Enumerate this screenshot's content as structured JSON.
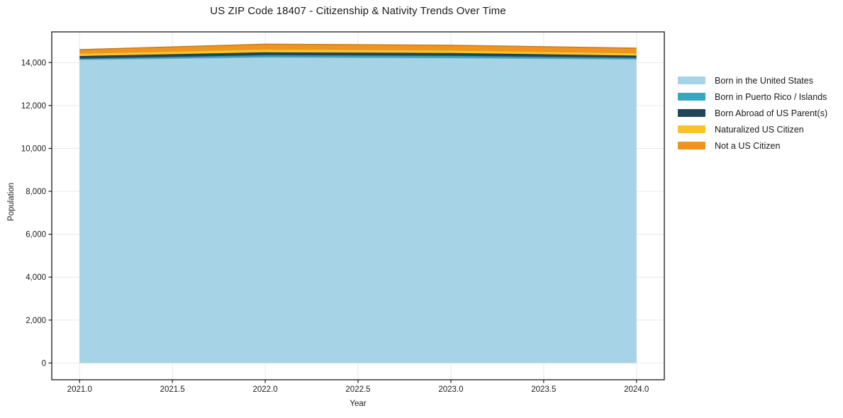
{
  "chart_data": {
    "type": "area",
    "stacked": true,
    "title": "US ZIP Code 18407 - Citizenship & Nativity Trends Over Time",
    "xlabel": "Year",
    "ylabel": "Population",
    "x": [
      2021,
      2022,
      2023,
      2024
    ],
    "series": [
      {
        "name": "Born in the United States",
        "color": "#A6D3E6",
        "values": [
          14140,
          14250,
          14220,
          14160
        ]
      },
      {
        "name": "Born in Puerto Rico / Islands",
        "color": "#3AA5BE",
        "values": [
          50,
          100,
          100,
          65
        ]
      },
      {
        "name": "Born Abroad of US Parent(s)",
        "color": "#21455B",
        "values": [
          115,
          130,
          130,
          100
        ]
      },
      {
        "name": "Naturalized US Citizen",
        "color": "#FCC22D",
        "values": [
          130,
          150,
          130,
          130
        ]
      },
      {
        "name": "Not a US Citizen",
        "color": "#F3931F",
        "values": [
          170,
          230,
          230,
          215
        ]
      }
    ],
    "xlim": [
      2020.85,
      2024.15
    ],
    "ylim": [
      -780,
      15430
    ],
    "xticks": {
      "values": [
        2021.0,
        2021.5,
        2022.0,
        2022.5,
        2023.0,
        2023.5,
        2024.0
      ],
      "labels": [
        "2021.0",
        "2021.5",
        "2022.0",
        "2022.5",
        "2023.0",
        "2023.5",
        "2024.0"
      ]
    },
    "yticks": {
      "values": [
        0,
        2000,
        4000,
        6000,
        8000,
        10000,
        12000,
        14000
      ],
      "labels": [
        "0",
        "2,000",
        "4,000",
        "6,000",
        "8,000",
        "10,000",
        "12,000",
        "14,000"
      ]
    },
    "grid": true,
    "legend_position": "right-of-plot"
  },
  "colors": {
    "grid": "#E8E8E8",
    "spine": "#1a1a1a",
    "text": "#1a1a1a",
    "background": "#ffffff"
  }
}
